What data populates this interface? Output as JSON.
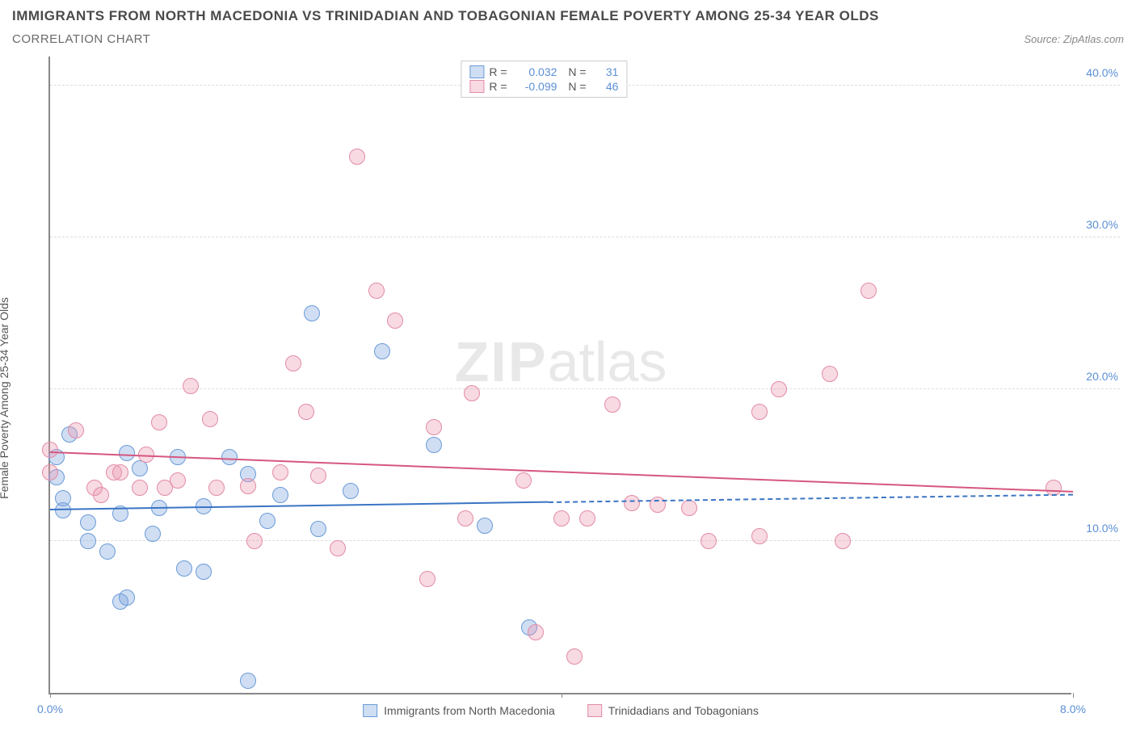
{
  "title": "IMMIGRANTS FROM NORTH MACEDONIA VS TRINIDADIAN AND TOBAGONIAN FEMALE POVERTY AMONG 25-34 YEAR OLDS",
  "subtitle": "CORRELATION CHART",
  "source": "Source: ZipAtlas.com",
  "y_axis_label": "Female Poverty Among 25-34 Year Olds",
  "watermark_bold": "ZIP",
  "watermark_light": "atlas",
  "chart": {
    "type": "scatter",
    "xlim": [
      0,
      8
    ],
    "ylim": [
      0,
      42
    ],
    "x_ticks": [
      0,
      8
    ],
    "x_tick_labels": [
      "0.0%",
      "8.0%"
    ],
    "y_ticks": [
      10,
      20,
      30,
      40
    ],
    "y_tick_labels": [
      "10.0%",
      "20.0%",
      "30.0%",
      "40.0%"
    ],
    "grid_color": "#dddddd",
    "axis_color": "#888888",
    "tick_label_color": "#5b8fd6",
    "background_color": "#ffffff",
    "series": [
      {
        "name": "Immigrants from North Macedonia",
        "legend_label": "Immigrants from North Macedonia",
        "fill_color": "rgba(120,160,220,0.35)",
        "stroke_color": "#6a9bd8",
        "trend_color": "#3a74c4",
        "r_value": "0.032",
        "n_value": "31",
        "trend": {
          "x1": 0,
          "y1": 12.0,
          "x2": 3.9,
          "y2": 12.5,
          "x2_dash": 8.0,
          "y2_dash": 13.0
        },
        "points": [
          [
            0.05,
            15.5
          ],
          [
            0.05,
            14.2
          ],
          [
            0.1,
            12.0
          ],
          [
            0.1,
            12.8
          ],
          [
            0.15,
            17.0
          ],
          [
            0.3,
            11.2
          ],
          [
            0.3,
            10.0
          ],
          [
            0.45,
            9.3
          ],
          [
            0.55,
            11.8
          ],
          [
            0.55,
            6.0
          ],
          [
            0.6,
            6.3
          ],
          [
            0.6,
            15.8
          ],
          [
            0.7,
            14.8
          ],
          [
            0.8,
            10.5
          ],
          [
            0.85,
            12.2
          ],
          [
            1.0,
            15.5
          ],
          [
            1.05,
            8.2
          ],
          [
            1.2,
            8.0
          ],
          [
            1.2,
            12.3
          ],
          [
            1.4,
            15.5
          ],
          [
            1.55,
            14.4
          ],
          [
            1.55,
            0.8
          ],
          [
            1.7,
            11.3
          ],
          [
            1.8,
            13.0
          ],
          [
            2.05,
            25.0
          ],
          [
            2.1,
            10.8
          ],
          [
            2.35,
            13.3
          ],
          [
            2.6,
            22.5
          ],
          [
            3.0,
            16.3
          ],
          [
            3.4,
            11.0
          ],
          [
            3.75,
            4.3
          ]
        ]
      },
      {
        "name": "Trinidadians and Tobagonians",
        "legend_label": "Trinidadians and Tobagonians",
        "fill_color": "rgba(235,150,175,0.35)",
        "stroke_color": "#e28ba5",
        "trend_color": "#d6577f",
        "r_value": "-0.099",
        "n_value": "46",
        "trend": {
          "x1": 0,
          "y1": 15.8,
          "x2": 8.0,
          "y2": 13.2
        },
        "points": [
          [
            0.0,
            16.0
          ],
          [
            0.0,
            14.5
          ],
          [
            0.2,
            17.3
          ],
          [
            0.35,
            13.5
          ],
          [
            0.4,
            13.0
          ],
          [
            0.5,
            14.5
          ],
          [
            0.55,
            14.5
          ],
          [
            0.7,
            13.5
          ],
          [
            0.75,
            15.7
          ],
          [
            0.85,
            17.8
          ],
          [
            0.9,
            13.5
          ],
          [
            1.0,
            14.0
          ],
          [
            1.1,
            20.2
          ],
          [
            1.25,
            18.0
          ],
          [
            1.3,
            13.5
          ],
          [
            1.55,
            13.6
          ],
          [
            1.6,
            10.0
          ],
          [
            1.8,
            14.5
          ],
          [
            1.9,
            21.7
          ],
          [
            2.0,
            18.5
          ],
          [
            2.1,
            14.3
          ],
          [
            2.25,
            9.5
          ],
          [
            2.4,
            35.3
          ],
          [
            2.55,
            26.5
          ],
          [
            2.7,
            24.5
          ],
          [
            2.95,
            7.5
          ],
          [
            3.0,
            17.5
          ],
          [
            3.25,
            11.5
          ],
          [
            3.3,
            19.7
          ],
          [
            3.7,
            14.0
          ],
          [
            3.8,
            4.0
          ],
          [
            4.0,
            11.5
          ],
          [
            4.1,
            2.4
          ],
          [
            4.2,
            11.5
          ],
          [
            4.4,
            19.0
          ],
          [
            4.55,
            12.5
          ],
          [
            4.75,
            12.4
          ],
          [
            5.0,
            12.2
          ],
          [
            5.15,
            10.0
          ],
          [
            5.55,
            18.5
          ],
          [
            5.55,
            10.3
          ],
          [
            5.7,
            20.0
          ],
          [
            6.1,
            21.0
          ],
          [
            6.2,
            10.0
          ],
          [
            6.4,
            26.5
          ],
          [
            7.85,
            13.5
          ]
        ]
      }
    ]
  },
  "legend_top": {
    "r_label": "R =",
    "n_label": "N ="
  }
}
